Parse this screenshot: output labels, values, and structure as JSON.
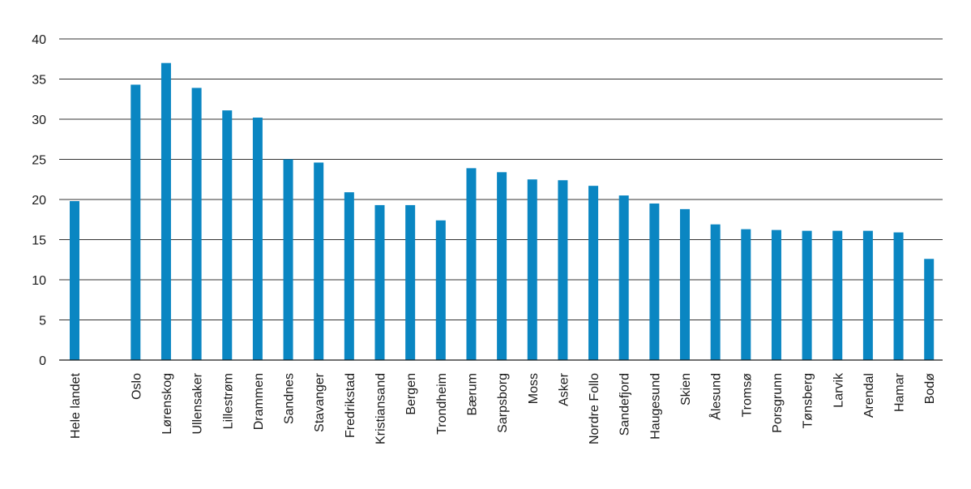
{
  "chart_data": {
    "type": "bar",
    "title": "",
    "xlabel": "",
    "ylabel": "",
    "ylim": [
      0,
      40
    ],
    "yticks": [
      0,
      5,
      10,
      15,
      20,
      25,
      30,
      35,
      40
    ],
    "grid": true,
    "legend": "none",
    "bar_color": "#0a86c2",
    "categories": [
      "Hele landet",
      "",
      "Oslo",
      "Lørenskog",
      "Ullensaker",
      "Lillestrøm",
      "Drammen",
      "Sandnes",
      "Stavanger",
      "Fredrikstad",
      "Kristiansand",
      "Bergen",
      "Trondheim",
      "Bærum",
      "Sarpsborg",
      "Moss",
      "Asker",
      "Nordre Follo",
      "Sandefjord",
      "Haugesund",
      "Skien",
      "Ålesund",
      "Tromsø",
      "Porsgrunn",
      "Tønsberg",
      "Larvik",
      "Arendal",
      "Hamar",
      "Bodø"
    ],
    "values": [
      19.8,
      null,
      34.3,
      37.0,
      33.9,
      31.1,
      30.2,
      25.0,
      24.6,
      20.9,
      19.3,
      19.3,
      17.4,
      23.9,
      23.4,
      22.5,
      22.4,
      21.7,
      20.5,
      19.5,
      18.8,
      16.9,
      16.3,
      16.2,
      16.1,
      16.1,
      16.1,
      15.9,
      12.6
    ]
  }
}
